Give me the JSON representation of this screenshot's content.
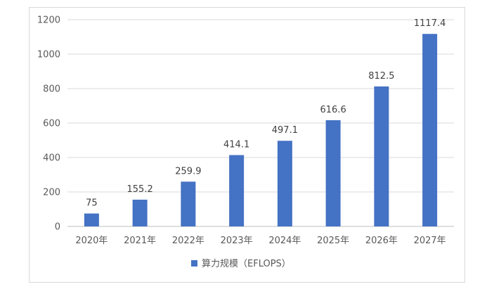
{
  "chart_data": {
    "type": "bar",
    "categories": [
      "2020年",
      "2021年",
      "2022年",
      "2023年",
      "2024年",
      "2025年",
      "2026年",
      "2027年"
    ],
    "series": [
      {
        "name": "算力规模（EFLOPS）",
        "values": [
          75,
          155.2,
          259.9,
          414.1,
          497.1,
          616.6,
          812.5,
          1117.4
        ],
        "data_labels": [
          "75",
          "155.2",
          "259.9",
          "414.1",
          "497.1",
          "616.6",
          "812.5",
          "1117.4"
        ]
      }
    ],
    "title": "",
    "xlabel": "",
    "ylabel": "",
    "ylim": [
      0,
      1200
    ],
    "yticks": [
      0,
      200,
      400,
      600,
      800,
      1000,
      1200
    ],
    "grid": true,
    "legend_position": "bottom",
    "colors": {
      "bar": "#4472C4",
      "grid": "#d9d9d9",
      "axis": "#bfbfbf"
    }
  }
}
